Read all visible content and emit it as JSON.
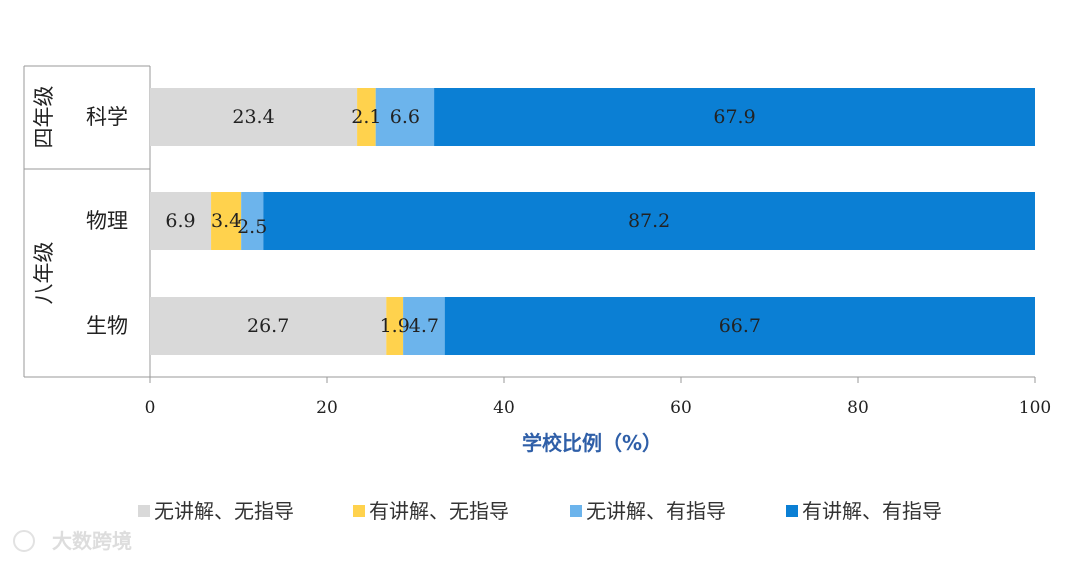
{
  "chart_data": {
    "type": "bar",
    "orientation": "horizontal",
    "stacked": true,
    "groups": [
      {
        "label": "四年级",
        "categories": [
          "科学"
        ]
      },
      {
        "label": "八年级",
        "categories": [
          "物理",
          "生物"
        ]
      }
    ],
    "categories": [
      "科学",
      "物理",
      "生物"
    ],
    "series": [
      {
        "name": "无讲解、无指导",
        "color": "#d9d9d9",
        "values": [
          23.4,
          6.9,
          26.7
        ]
      },
      {
        "name": "有讲解、无指导",
        "color": "#ffd24d",
        "values": [
          2.1,
          3.4,
          1.9
        ]
      },
      {
        "name": "无讲解、有指导",
        "color": "#6cb4ec",
        "values": [
          6.6,
          2.5,
          4.7
        ]
      },
      {
        "name": "有讲解、有指导",
        "color": "#0b7fd4",
        "values": [
          67.9,
          87.2,
          66.7
        ]
      }
    ],
    "value_labels": [
      [
        "23.4",
        "2.1",
        "6.6",
        "67.9"
      ],
      [
        "6.9",
        "3.4",
        "2.5",
        "87.2"
      ],
      [
        "26.7",
        "1.9",
        "4.7",
        "66.7"
      ]
    ],
    "xlabel": "学校比例（%）",
    "xlim": [
      0,
      100
    ],
    "xticks": [
      "0",
      "20",
      "40",
      "60",
      "80",
      "100"
    ],
    "legend_position": "bottom",
    "grid": false
  },
  "watermark": "大数跨境"
}
